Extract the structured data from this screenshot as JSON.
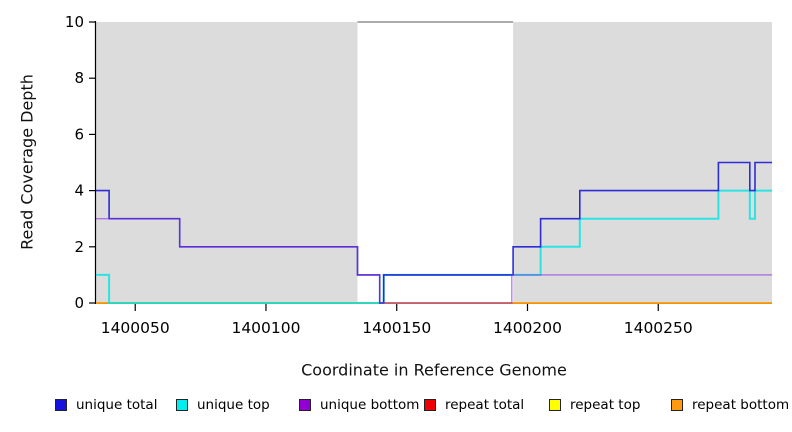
{
  "chart_data": {
    "type": "line",
    "subtype": "step-coverage",
    "title": "",
    "xlabel": "Coordinate in Reference Genome",
    "ylabel": "Read Coverage Depth",
    "xlim": [
      1400035,
      1400293.5
    ],
    "ylim": [
      0,
      10
    ],
    "x_ticks": [
      1400050,
      1400100,
      1400150,
      1400200,
      1400250
    ],
    "y_ticks": [
      0,
      2,
      4,
      6,
      8,
      10
    ],
    "grid": false,
    "background": "#FFFFFF",
    "shaded_regions": [
      {
        "name": "repeat-region-1",
        "x0": 1400035,
        "x1": 1400135,
        "color": "#DCDCDC"
      },
      {
        "name": "repeat-region-2",
        "x0": 1400194.5,
        "x1": 1400293.5,
        "color": "#DCDCDC"
      }
    ],
    "gap_top_line": {
      "y": 10,
      "x0": 1400135,
      "x1": 1400194.5,
      "color": "#909090"
    },
    "series": [
      {
        "name": "unique_total",
        "label": "unique total",
        "color": "#2323D6",
        "swatch": "#1414DC",
        "steps": [
          [
            1400035,
            4
          ],
          [
            1400040,
            3
          ],
          [
            1400067,
            2
          ],
          [
            1400135,
            1
          ],
          [
            1400143.5,
            0
          ],
          [
            1400145,
            1
          ],
          [
            1400194.5,
            2
          ],
          [
            1400205,
            3
          ],
          [
            1400220,
            4
          ],
          [
            1400273,
            5
          ],
          [
            1400285,
            4
          ],
          [
            1400287,
            5
          ]
        ]
      },
      {
        "name": "unique_top",
        "label": "unique top",
        "color": "#00E5E5",
        "swatch": "#00EEEE",
        "steps": [
          [
            1400035,
            1
          ],
          [
            1400040,
            0
          ],
          [
            1400145,
            1
          ],
          [
            1400205,
            2
          ],
          [
            1400220,
            3
          ],
          [
            1400273,
            4
          ],
          [
            1400285,
            3
          ],
          [
            1400287,
            4
          ]
        ]
      },
      {
        "name": "unique_bottom",
        "label": "unique bottom",
        "color": "#8A2BE2",
        "swatch": "#9400D3",
        "steps": [
          [
            1400035,
            3
          ],
          [
            1400067,
            2
          ],
          [
            1400135,
            1
          ],
          [
            1400143.5,
            0
          ],
          [
            1400194,
            1
          ]
        ]
      },
      {
        "name": "repeat_total",
        "label": "repeat total",
        "color": "#E01010",
        "swatch": "#EE0000",
        "steps": [
          [
            1400035,
            0
          ]
        ]
      },
      {
        "name": "repeat_top",
        "label": "repeat top",
        "color": "#FFFF00",
        "swatch": "#FFFF00",
        "steps": [
          [
            1400035,
            0
          ]
        ]
      },
      {
        "name": "repeat_bottom",
        "label": "repeat bottom",
        "color": "#FF9912",
        "swatch": "#FF9912",
        "steps": [
          [
            1400035,
            0
          ]
        ]
      }
    ],
    "legend": {
      "position": "bottom",
      "entries": [
        "unique total",
        "unique top",
        "unique bottom",
        "repeat total",
        "repeat top",
        "repeat bottom"
      ]
    }
  }
}
